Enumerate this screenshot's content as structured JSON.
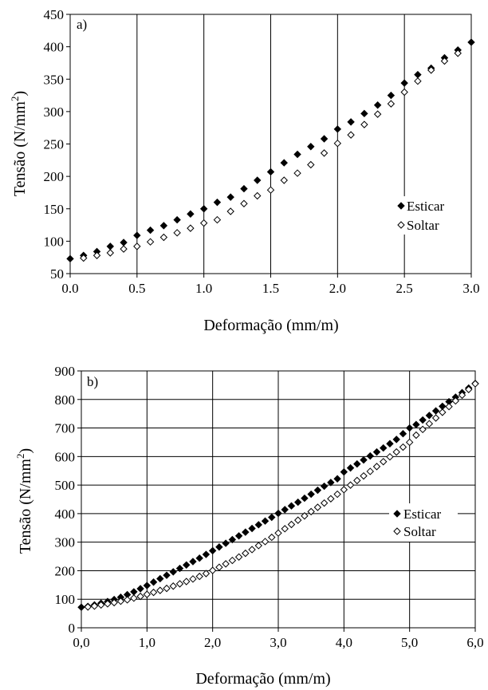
{
  "chart_data": [
    {
      "type": "scatter",
      "panel_label": "a)",
      "xlabel": "Deformação (mm/m)",
      "ylabel_main": "Tensão (N/mm",
      "ylabel_sup": "2",
      "ylabel_tail": ")",
      "xlim": [
        0,
        3
      ],
      "ylim": [
        50,
        450
      ],
      "xticks": [
        0,
        0.5,
        1,
        1.5,
        2,
        2.5,
        3
      ],
      "xtick_labels": [
        "0.0",
        "0.5",
        "1.0",
        "1.5",
        "2.0",
        "2.5",
        "3.0"
      ],
      "yticks": [
        50,
        100,
        150,
        200,
        250,
        300,
        350,
        400,
        450
      ],
      "ytick_labels": [
        "50",
        "100",
        "150",
        "200",
        "250",
        "300",
        "350",
        "400",
        "450"
      ],
      "grid": "vertical major lines",
      "legend_position": "right-middle",
      "series": [
        {
          "name": "Esticar",
          "marker": "filled-diamond",
          "color": "#000000",
          "points": [
            [
              0.0,
              73
            ],
            [
              0.1,
              78
            ],
            [
              0.2,
              84
            ],
            [
              0.3,
              92
            ],
            [
              0.4,
              98
            ],
            [
              0.5,
              109
            ],
            [
              0.6,
              117
            ],
            [
              0.7,
              124
            ],
            [
              0.8,
              133
            ],
            [
              0.9,
              142
            ],
            [
              1.0,
              150
            ],
            [
              1.1,
              160
            ],
            [
              1.2,
              168
            ],
            [
              1.3,
              181
            ],
            [
              1.4,
              194
            ],
            [
              1.5,
              207
            ],
            [
              1.6,
              221
            ],
            [
              1.7,
              234
            ],
            [
              1.8,
              246
            ],
            [
              1.9,
              258
            ],
            [
              2.0,
              273
            ],
            [
              2.1,
              284
            ],
            [
              2.2,
              297
            ],
            [
              2.3,
              310
            ],
            [
              2.4,
              325
            ],
            [
              2.5,
              344
            ],
            [
              2.6,
              357
            ],
            [
              2.7,
              367
            ],
            [
              2.8,
              383
            ],
            [
              2.9,
              395
            ],
            [
              3.0,
              407
            ]
          ]
        },
        {
          "name": "Soltar",
          "marker": "hollow-diamond",
          "color": "#000000",
          "points": [
            [
              0.1,
              74
            ],
            [
              0.2,
              78
            ],
            [
              0.3,
              82
            ],
            [
              0.4,
              88
            ],
            [
              0.5,
              92
            ],
            [
              0.6,
              99
            ],
            [
              0.7,
              106
            ],
            [
              0.8,
              113
            ],
            [
              0.9,
              120
            ],
            [
              1.0,
              128
            ],
            [
              1.1,
              133
            ],
            [
              1.2,
              146
            ],
            [
              1.3,
              158
            ],
            [
              1.4,
              170
            ],
            [
              1.5,
              179
            ],
            [
              1.6,
              194
            ],
            [
              1.7,
              205
            ],
            [
              1.8,
              218
            ],
            [
              1.9,
              236
            ],
            [
              2.0,
              251
            ],
            [
              2.1,
              264
            ],
            [
              2.2,
              280
            ],
            [
              2.3,
              296
            ],
            [
              2.4,
              312
            ],
            [
              2.5,
              330
            ],
            [
              2.6,
              347
            ],
            [
              2.7,
              364
            ],
            [
              2.8,
              378
            ],
            [
              2.9,
              390
            ]
          ]
        }
      ]
    },
    {
      "type": "scatter",
      "panel_label": "b)",
      "xlabel": "Deformação (mm/m)",
      "ylabel_main": "Tensão (N/mm",
      "ylabel_sup": "2",
      "ylabel_tail": ")",
      "xlim": [
        0,
        6
      ],
      "ylim": [
        0,
        900
      ],
      "xticks": [
        0,
        1,
        2,
        3,
        4,
        5,
        6
      ],
      "xtick_labels": [
        "0,0",
        "1,0",
        "2,0",
        "3,0",
        "4,0",
        "5,0",
        "6,0"
      ],
      "yticks": [
        0,
        100,
        200,
        300,
        400,
        500,
        600,
        700,
        800,
        900
      ],
      "ytick_labels": [
        "0",
        "100",
        "200",
        "300",
        "400",
        "500",
        "600",
        "700",
        "800",
        "900"
      ],
      "grid": "vertical and horizontal major lines",
      "legend_position": "right-middle",
      "series": [
        {
          "name": "Esticar",
          "marker": "filled-diamond",
          "color": "#000000",
          "points": [
            [
              0.0,
              72
            ],
            [
              0.1,
              75
            ],
            [
              0.2,
              80
            ],
            [
              0.3,
              86
            ],
            [
              0.4,
              92
            ],
            [
              0.5,
              99
            ],
            [
              0.6,
              107
            ],
            [
              0.7,
              116
            ],
            [
              0.8,
              126
            ],
            [
              0.9,
              137
            ],
            [
              1.0,
              148
            ],
            [
              1.1,
              160
            ],
            [
              1.2,
              172
            ],
            [
              1.3,
              184
            ],
            [
              1.4,
              196
            ],
            [
              1.5,
              208
            ],
            [
              1.6,
              220
            ],
            [
              1.7,
              232
            ],
            [
              1.8,
              244
            ],
            [
              1.9,
              257
            ],
            [
              2.0,
              270
            ],
            [
              2.1,
              283
            ],
            [
              2.2,
              296
            ],
            [
              2.3,
              309
            ],
            [
              2.4,
              322
            ],
            [
              2.5,
              335
            ],
            [
              2.6,
              348
            ],
            [
              2.7,
              361
            ],
            [
              2.8,
              374
            ],
            [
              2.9,
              387
            ],
            [
              3.0,
              401
            ],
            [
              3.1,
              414
            ],
            [
              3.2,
              427
            ],
            [
              3.3,
              440
            ],
            [
              3.4,
              454
            ],
            [
              3.5,
              468
            ],
            [
              3.6,
              482
            ],
            [
              3.7,
              496
            ],
            [
              3.8,
              509
            ],
            [
              3.9,
              522
            ],
            [
              4.0,
              546
            ],
            [
              4.1,
              560
            ],
            [
              4.2,
              574
            ],
            [
              4.3,
              588
            ],
            [
              4.4,
              602
            ],
            [
              4.5,
              616
            ],
            [
              4.6,
              630
            ],
            [
              4.7,
              645
            ],
            [
              4.8,
              660
            ],
            [
              4.9,
              680
            ],
            [
              5.0,
              700
            ],
            [
              5.1,
              712
            ],
            [
              5.2,
              728
            ],
            [
              5.3,
              744
            ],
            [
              5.4,
              760
            ],
            [
              5.5,
              776
            ],
            [
              5.6,
              792
            ],
            [
              5.7,
              808
            ],
            [
              5.8,
              824
            ],
            [
              5.9,
              840
            ],
            [
              6.0,
              856
            ]
          ]
        },
        {
          "name": "Soltar",
          "marker": "hollow-diamond",
          "color": "#000000",
          "points": [
            [
              0.1,
              73
            ],
            [
              0.2,
              76
            ],
            [
              0.3,
              80
            ],
            [
              0.4,
              84
            ],
            [
              0.5,
              88
            ],
            [
              0.6,
              93
            ],
            [
              0.7,
              98
            ],
            [
              0.8,
              104
            ],
            [
              0.9,
              110
            ],
            [
              1.0,
              117
            ],
            [
              1.1,
              124
            ],
            [
              1.2,
              131
            ],
            [
              1.3,
              138
            ],
            [
              1.4,
              146
            ],
            [
              1.5,
              154
            ],
            [
              1.6,
              162
            ],
            [
              1.7,
              171
            ],
            [
              1.8,
              180
            ],
            [
              1.9,
              190
            ],
            [
              2.0,
              201
            ],
            [
              2.1,
              212
            ],
            [
              2.2,
              224
            ],
            [
              2.3,
              236
            ],
            [
              2.4,
              248
            ],
            [
              2.5,
              261
            ],
            [
              2.6,
              274
            ],
            [
              2.7,
              288
            ],
            [
              2.8,
              302
            ],
            [
              2.9,
              317
            ],
            [
              3.0,
              332
            ],
            [
              3.1,
              347
            ],
            [
              3.2,
              362
            ],
            [
              3.3,
              377
            ],
            [
              3.4,
              392
            ],
            [
              3.5,
              407
            ],
            [
              3.6,
              422
            ],
            [
              3.7,
              437
            ],
            [
              3.8,
              452
            ],
            [
              3.9,
              468
            ],
            [
              4.0,
              484
            ],
            [
              4.1,
              500
            ],
            [
              4.2,
              516
            ],
            [
              4.3,
              532
            ],
            [
              4.4,
              548
            ],
            [
              4.5,
              565
            ],
            [
              4.6,
              582
            ],
            [
              4.7,
              599
            ],
            [
              4.8,
              616
            ],
            [
              4.9,
              633
            ],
            [
              5.0,
              650
            ],
            [
              5.1,
              675
            ],
            [
              5.2,
              695
            ],
            [
              5.3,
              715
            ],
            [
              5.4,
              735
            ],
            [
              5.5,
              755
            ],
            [
              5.6,
              775
            ],
            [
              5.7,
              795
            ],
            [
              5.8,
              815
            ],
            [
              5.9,
              835
            ],
            [
              6.0,
              855
            ]
          ]
        }
      ]
    }
  ]
}
